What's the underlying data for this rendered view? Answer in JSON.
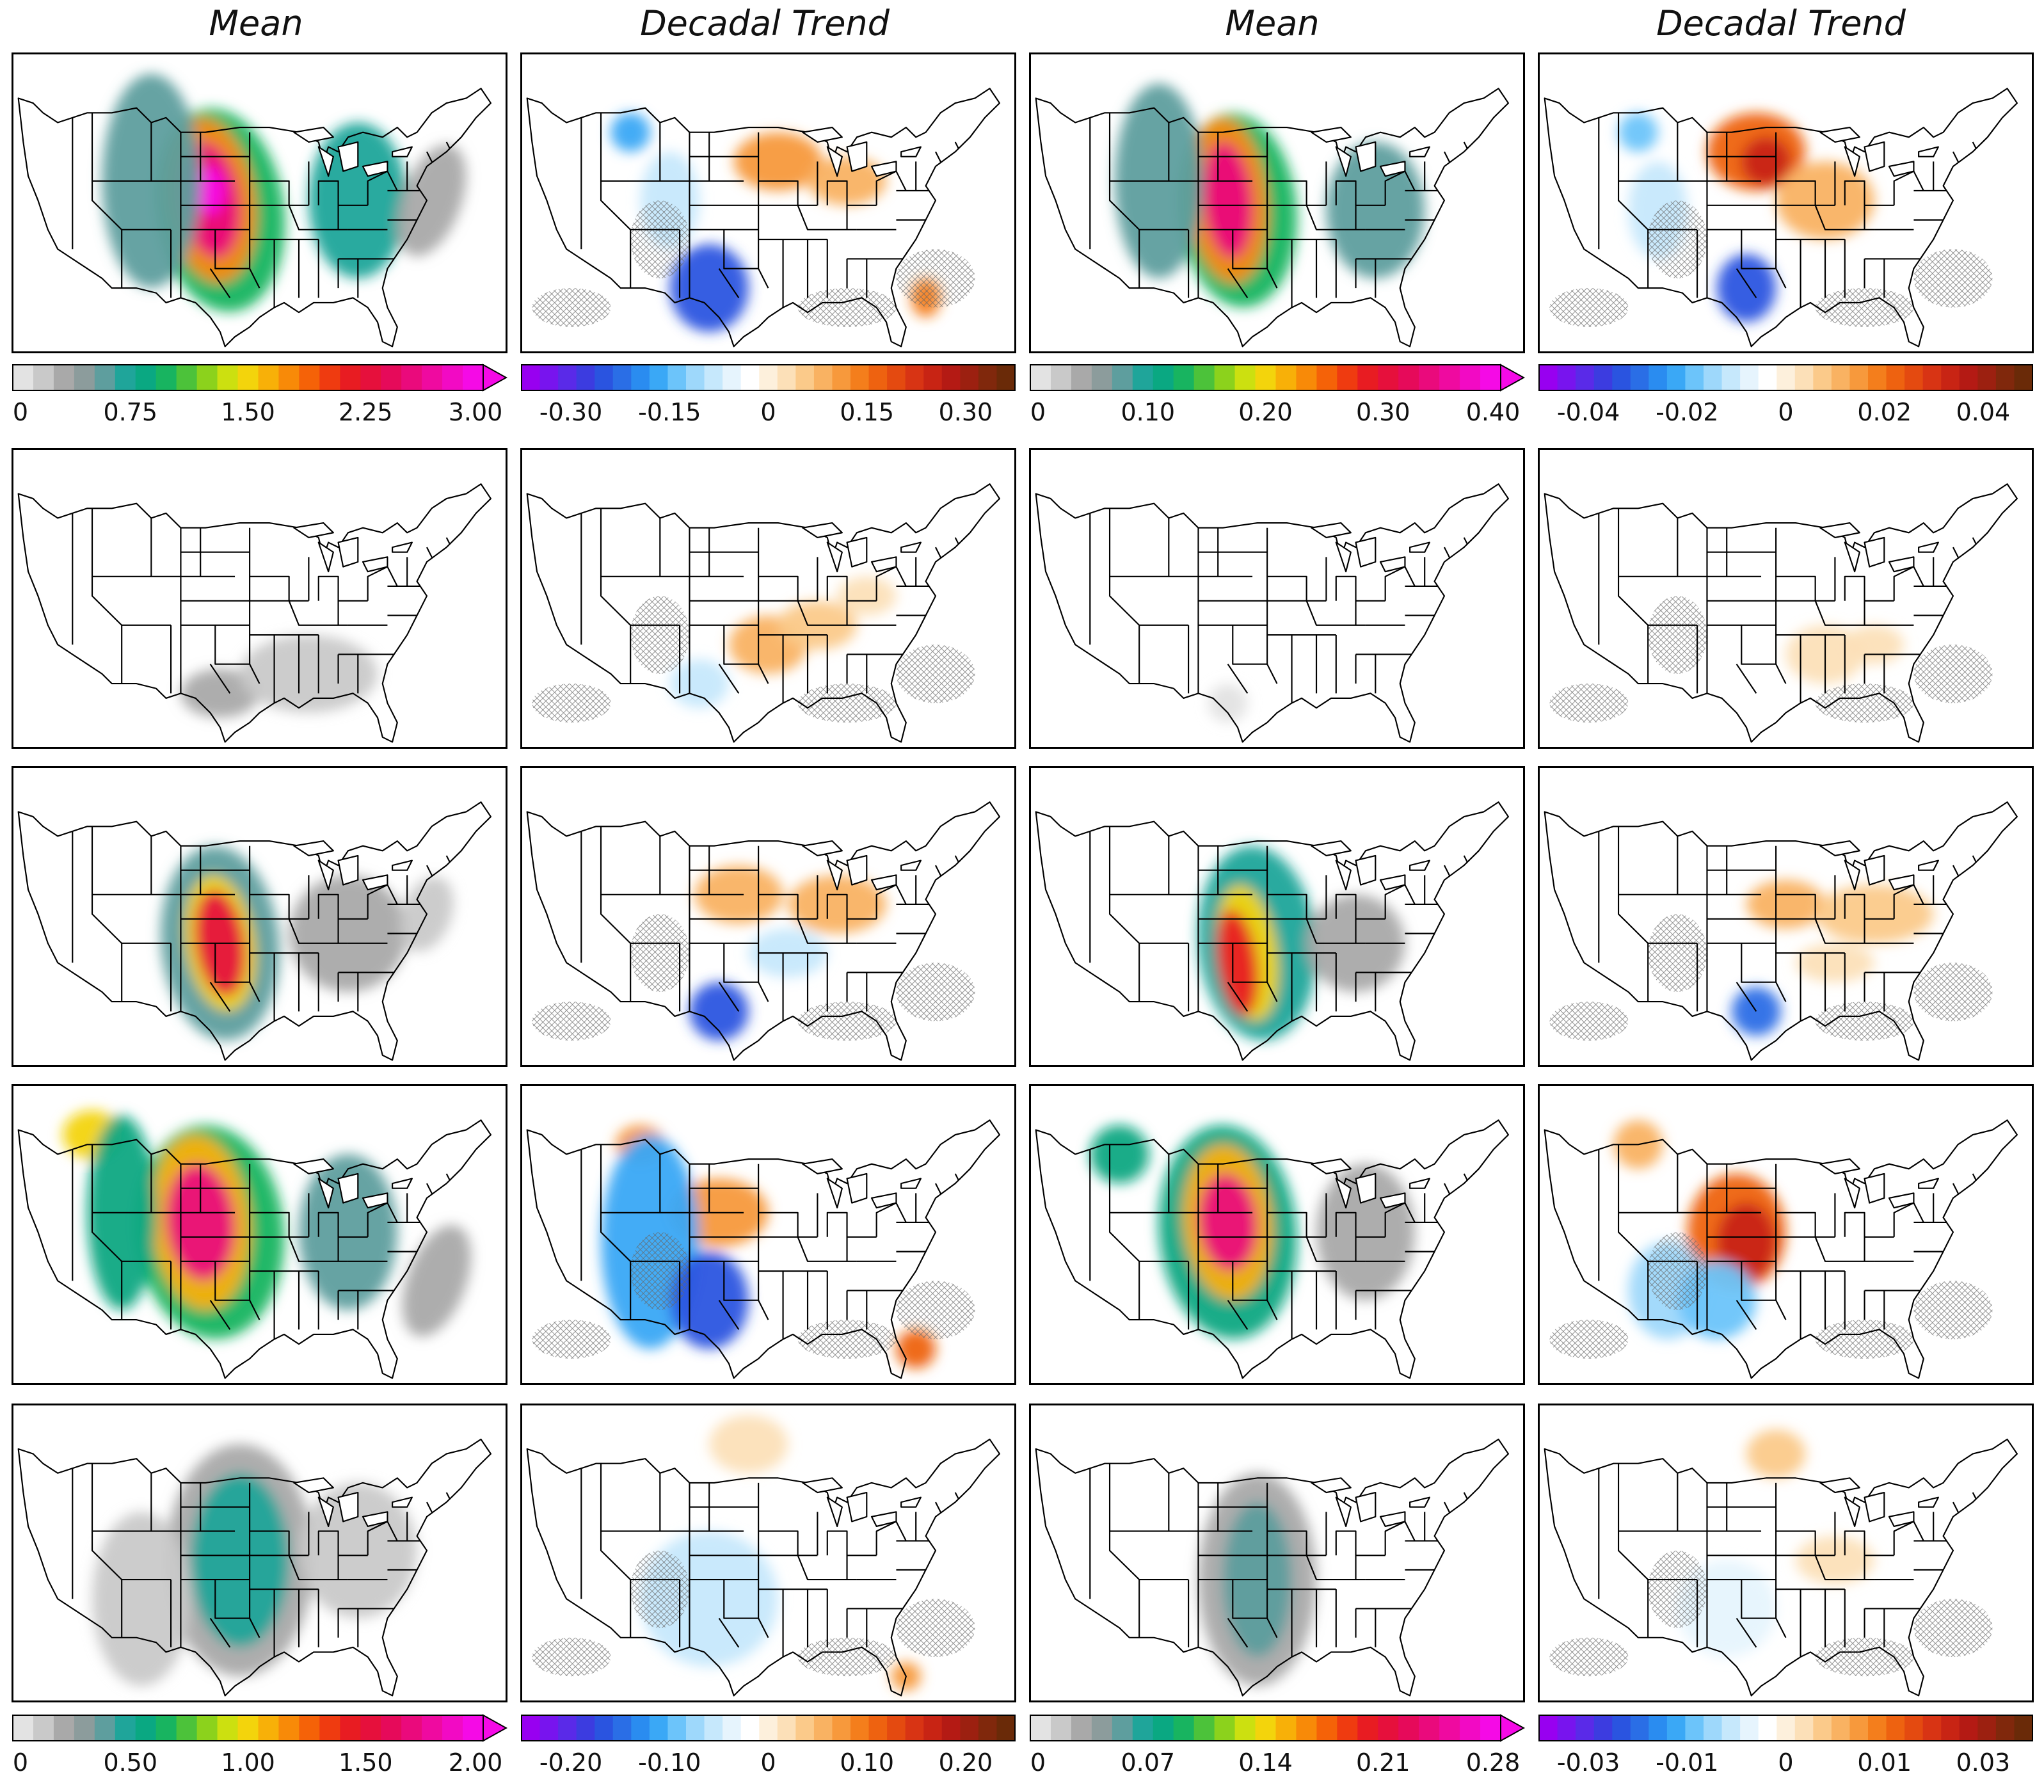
{
  "columns": [
    {
      "title": "Mean"
    },
    {
      "title": "Decadal Trend"
    },
    {
      "title": "Mean"
    },
    {
      "title": "Decadal Trend"
    }
  ],
  "colormaps": {
    "mean": [
      "#ffffff",
      "#e3e3e3",
      "#c9c9c9",
      "#a9a9a9",
      "#8c9c9c",
      "#5e9e9e",
      "#1fa59a",
      "#0aa882",
      "#18b460",
      "#4cc23a",
      "#8cd21c",
      "#cce010",
      "#f3d40c",
      "#f8b008",
      "#f88a08",
      "#f56208",
      "#ef3b10",
      "#e81c22",
      "#e6103c",
      "#e60a5a",
      "#ea0a7c",
      "#ef0aa0",
      "#f20ac4",
      "#f50ae6"
    ],
    "trend": [
      "#9800f0",
      "#7814ee",
      "#5a2ae8",
      "#3c3ce0",
      "#2a54e0",
      "#2a6ee6",
      "#2a8cf0",
      "#3aa8f6",
      "#6cc4fa",
      "#9ed8fb",
      "#c6e8fc",
      "#e6f4fd",
      "#ffffff",
      "#fdf0dc",
      "#fce0b8",
      "#fbca8a",
      "#f9b262",
      "#f7993c",
      "#f47e1c",
      "#ee6210",
      "#e44a10",
      "#d83414",
      "#c82414",
      "#b41a14",
      "#9c2010",
      "#80280c",
      "#6a2a08"
    ]
  },
  "colorbars": {
    "row1": [
      {
        "ticks": [
          "0",
          "0.75",
          "1.50",
          "2.25",
          "3.00"
        ]
      },
      {
        "ticks": [
          "-0.30",
          "-0.15",
          "0",
          "0.15",
          "0.30"
        ]
      },
      {
        "ticks": [
          "0",
          "0.10",
          "0.20",
          "0.30",
          "0.40"
        ]
      },
      {
        "ticks": [
          "-0.04",
          "-0.02",
          "0",
          "0.02",
          "0.04"
        ]
      }
    ],
    "row5": [
      {
        "ticks": [
          "0",
          "0.50",
          "1.00",
          "1.50",
          "2.00"
        ]
      },
      {
        "ticks": [
          "-0.20",
          "-0.10",
          "0",
          "0.10",
          "0.20"
        ]
      },
      {
        "ticks": [
          "0",
          "0.07",
          "0.14",
          "0.21",
          "0.28"
        ]
      },
      {
        "ticks": [
          "-0.03",
          "-0.01",
          "0",
          "0.01",
          "0.03"
        ]
      }
    ]
  }
}
